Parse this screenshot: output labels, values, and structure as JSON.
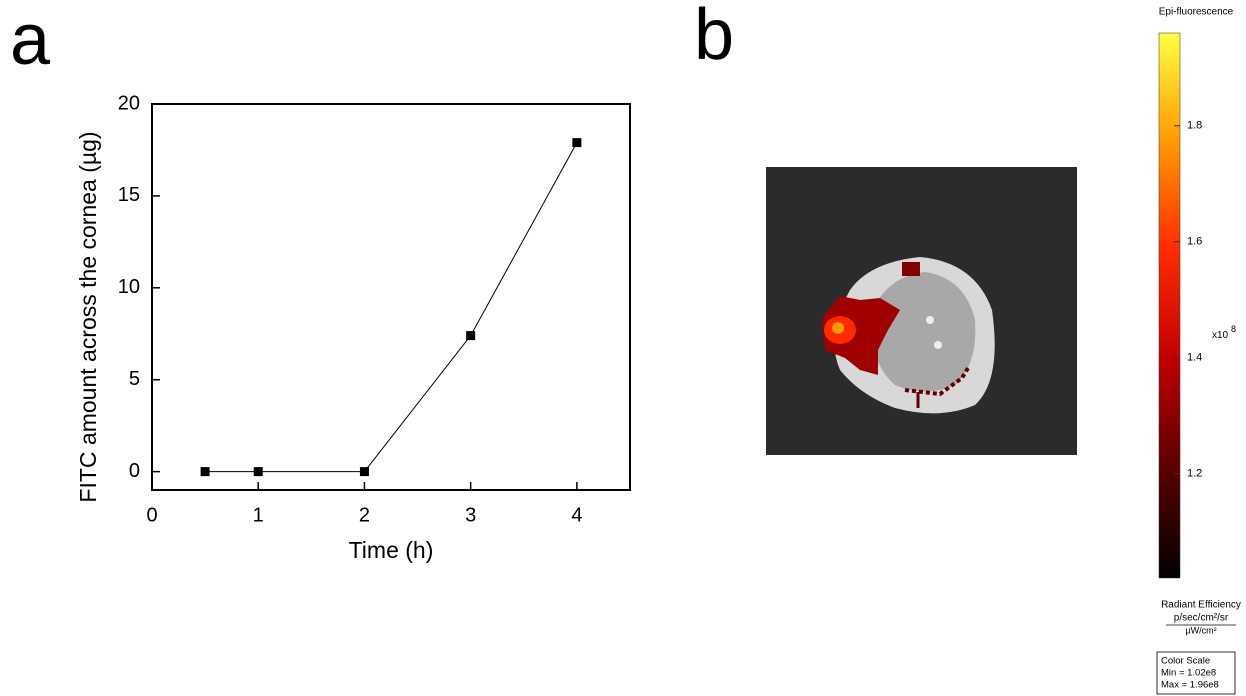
{
  "chart_data": [
    {
      "type": "line",
      "panel": "a",
      "xlabel": "Time (h)",
      "ylabel": "FITC amount across the cornea (µg)",
      "x": [
        0.5,
        1,
        2,
        3,
        4
      ],
      "values": [
        0,
        0,
        0,
        7.4,
        17.9
      ],
      "color": "#000000",
      "xlim": [
        0,
        4.5
      ],
      "ylim": [
        -1,
        20
      ],
      "xticks": [
        0,
        1,
        2,
        3,
        4
      ],
      "yticks": [
        0,
        5,
        10,
        15,
        20
      ]
    },
    {
      "type": "colorbar",
      "panel": "b",
      "title": "Epi-fluorescence",
      "multiplier": "x10",
      "exponent": "8",
      "ylim": [
        1.02,
        1.96
      ],
      "yticks": [
        1.2,
        1.4,
        1.6,
        1.8
      ],
      "colors": [
        "#000000",
        "#5a0000",
        "#c00000",
        "#ff2a00",
        "#ff9a00",
        "#ffff40"
      ],
      "unit_title": "Radiant Efficiency",
      "unit_numerator": "p/sec/cm²/sr",
      "unit_denominator": "µW/cm²",
      "scale_box": [
        "Color Scale",
        "Min = 1.02e8",
        "Max = 1.96e8"
      ]
    }
  ]
}
